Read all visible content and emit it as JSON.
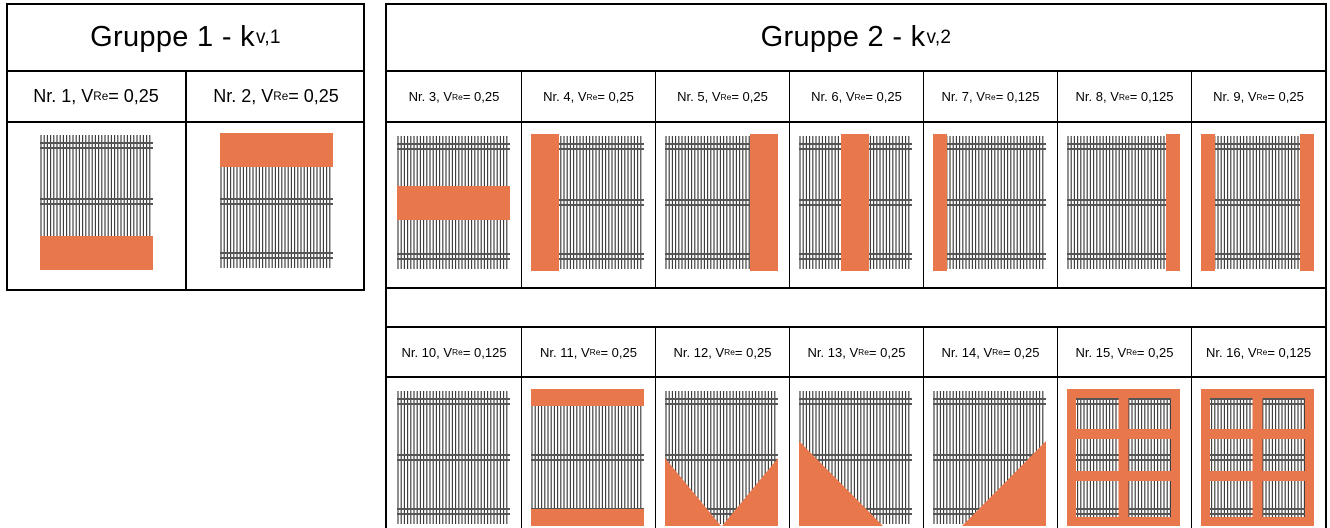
{
  "group1": {
    "title_main": "Gruppe 1 - k",
    "title_sub": "v,1",
    "cells": [
      {
        "label_pre": "Nr. 1, V",
        "label_sub": "Re",
        "label_post": " = 0,25",
        "pattern": "bottom-band"
      },
      {
        "label_pre": "Nr. 2, V",
        "label_sub": "Re",
        "label_post": " = 0,25",
        "pattern": "top-band"
      }
    ]
  },
  "group2": {
    "title_main": "Gruppe 2 - k",
    "title_sub": "v,2",
    "row1": [
      {
        "label_pre": "Nr. 3, V",
        "label_sub": "Re",
        "label_post": " = 0,25",
        "pattern": "middle-band"
      },
      {
        "label_pre": "Nr. 4, V",
        "label_sub": "Re",
        "label_post": " = 0,25",
        "pattern": "left-band"
      },
      {
        "label_pre": "Nr. 5, V",
        "label_sub": "Re",
        "label_post": " = 0,25",
        "pattern": "right-band"
      },
      {
        "label_pre": "Nr. 6, V",
        "label_sub": "Re",
        "label_post": " = 0,25",
        "pattern": "center-vertical-band"
      },
      {
        "label_pre": "Nr. 7, V",
        "label_sub": "Re",
        "label_post": " = 0,125",
        "pattern": "left-strip"
      },
      {
        "label_pre": "Nr. 8, V",
        "label_sub": "Re",
        "label_post": " = 0,125",
        "pattern": "right-strip"
      },
      {
        "label_pre": "Nr. 9, V",
        "label_sub": "Re",
        "label_post": " = 0,25",
        "pattern": "both-side-strips"
      }
    ],
    "row2": [
      {
        "label_pre": "Nr. 10, V",
        "label_sub": "Re",
        "label_post": " = 0,125",
        "pattern": "none"
      },
      {
        "label_pre": "Nr. 11, V",
        "label_sub": "Re",
        "label_post": " = 0,25",
        "pattern": "top-bottom-strips"
      },
      {
        "label_pre": "Nr. 12, V",
        "label_sub": "Re",
        "label_post": " = 0,25",
        "pattern": "double-triangle"
      },
      {
        "label_pre": "Nr. 13, V",
        "label_sub": "Re",
        "label_post": " = 0,25",
        "pattern": "left-triangle"
      },
      {
        "label_pre": "Nr. 14, V",
        "label_sub": "Re",
        "label_post": " = 0,25",
        "pattern": "right-triangle"
      },
      {
        "label_pre": "Nr. 15, V",
        "label_sub": "Re",
        "label_post": " = 0,25",
        "pattern": "frame-grid"
      },
      {
        "label_pre": "Nr. 16, V",
        "label_sub": "Re",
        "label_post": " = 0,125",
        "pattern": "frame-grid"
      }
    ]
  },
  "colors": {
    "highlight": "#E8774C",
    "line": "#000000",
    "grating_dark": "#2f2f2f",
    "grating_bar": "#555555"
  }
}
